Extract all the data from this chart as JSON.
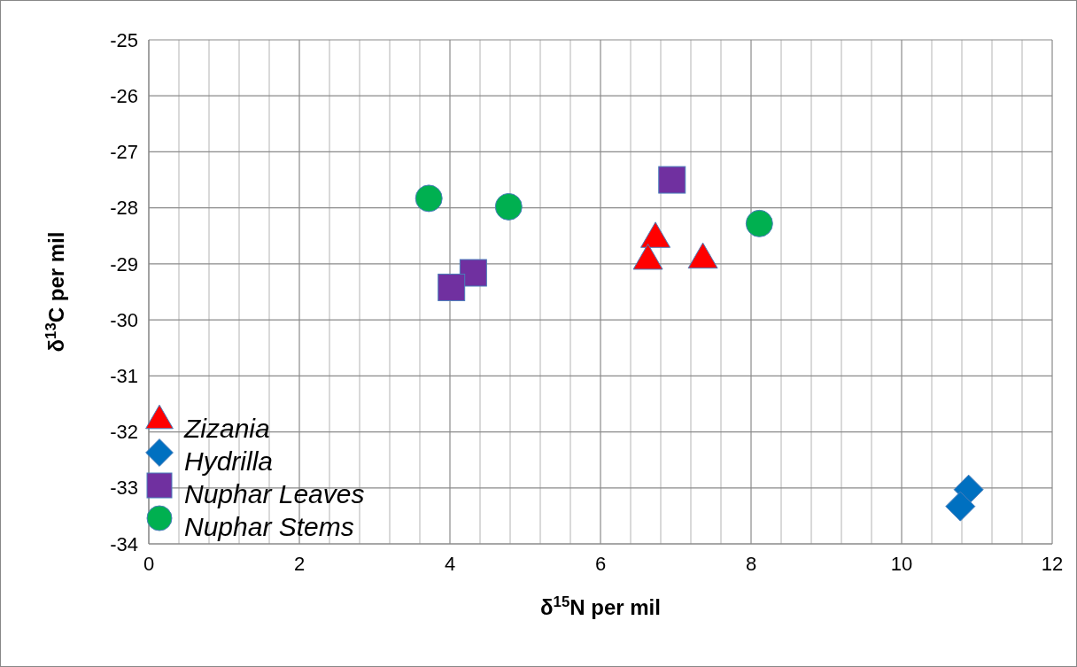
{
  "chart_data": {
    "type": "scatter",
    "xlabel": "δ$^{15}$N per mil",
    "ylabel": "δ$^{13}$C per mil",
    "xlim": [
      0,
      12
    ],
    "ylim": [
      -34,
      -25
    ],
    "xticks": [
      0,
      {
        "value": 0.4,
        "label": null
      },
      {
        "value": 0.8,
        "label": null
      },
      {
        "value": 1.2,
        "label": null
      },
      {
        "value": 1.6,
        "label": null
      },
      2,
      {
        "value": 2.4,
        "label": null
      },
      {
        "value": 2.8,
        "label": null
      },
      {
        "value": 3.2,
        "label": null
      },
      {
        "value": 3.6,
        "label": null
      },
      4,
      {
        "value": 4.4,
        "label": null
      },
      {
        "value": 4.8,
        "label": null
      },
      {
        "value": 5.2,
        "label": null
      },
      {
        "value": 5.6,
        "label": null
      },
      6,
      {
        "value": 6.4,
        "label": null
      },
      {
        "value": 6.8,
        "label": null
      },
      {
        "value": 7.2,
        "label": null
      },
      {
        "value": 7.6,
        "label": null
      },
      8,
      {
        "value": 8.4,
        "label": null
      },
      {
        "value": 8.8,
        "label": null
      },
      {
        "value": 9.2,
        "label": null
      },
      {
        "value": 9.6,
        "label": null
      },
      10,
      {
        "value": 10.4,
        "label": null
      },
      {
        "value": 10.8,
        "label": null
      },
      {
        "value": 11.2,
        "label": null
      },
      {
        "value": 11.6,
        "label": null
      },
      12
    ],
    "yticks": [
      -34,
      -33,
      -32,
      -31,
      -30,
      -29,
      -28,
      -27,
      -26,
      -25
    ],
    "grid": true,
    "legend": "bottom left",
    "series": [
      {
        "name": "Zizania",
        "color": "#ff0000",
        "marker": "triangle",
        "x": [
          6.73,
          6.63,
          7.36
        ],
        "values": [
          -28.54,
          -28.93,
          -28.91
        ]
      },
      {
        "name": "Hydrilla",
        "color": "#0070c0",
        "marker": "diamond",
        "x": [
          10.89,
          10.78
        ],
        "values": [
          -33.03,
          -33.33
        ]
      },
      {
        "name": "Nuphar Leaves",
        "color": "#7030a0",
        "marker": "square",
        "x": [
          6.95,
          4.31,
          4.02
        ],
        "values": [
          -27.5,
          -29.16,
          -29.42
        ]
      },
      {
        "name": "Nuphar Stems",
        "color": "#00b050",
        "marker": "circle",
        "x": [
          3.72,
          4.78,
          8.11
        ],
        "values": [
          -27.83,
          -27.98,
          -28.28
        ]
      }
    ]
  }
}
